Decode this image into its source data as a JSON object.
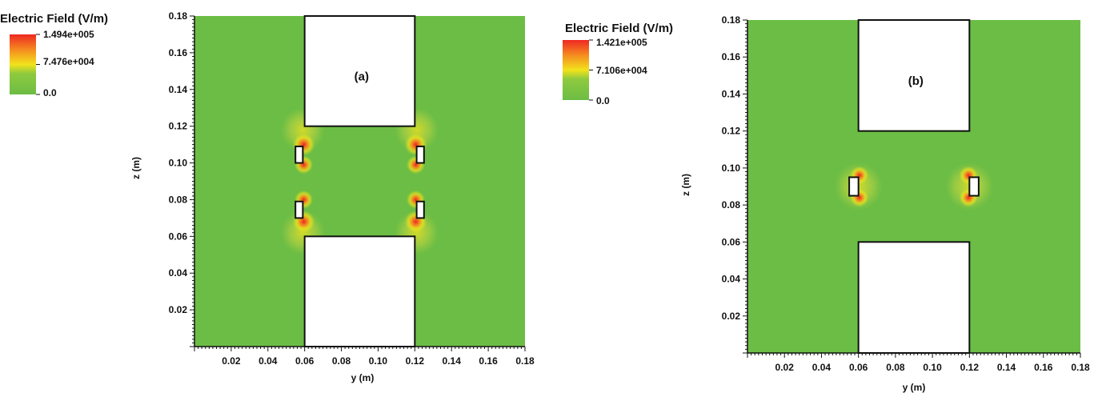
{
  "chart_data": [
    {
      "type": "heatmap",
      "panel_label": "(a)",
      "xlabel": "y (m)",
      "ylabel": "z (m)",
      "xlim": [
        0,
        0.18
      ],
      "ylim": [
        0,
        0.18
      ],
      "x_ticks": [
        "0.02",
        "0.04",
        "0.06",
        "0.08",
        "0.10",
        "0.12",
        "0.14",
        "0.16",
        "0.18"
      ],
      "y_ticks": [
        "0.02",
        "0.04",
        "0.06",
        "0.08",
        "0.10",
        "0.12",
        "0.14",
        "0.16",
        "0.18"
      ],
      "colorbar": {
        "title": "Electric Field (V/m)",
        "max_label": "1.494e+005",
        "mid_label": "7.476e+004",
        "min_label": "0.0",
        "max": 149400,
        "mid": 74760,
        "min": 0
      },
      "background_field": 0,
      "electrodes": [
        {
          "y0": 0.06,
          "y1": 0.12,
          "z0": 0.12,
          "z1": 0.18
        },
        {
          "y0": 0.06,
          "y1": 0.12,
          "z0": 0.0,
          "z1": 0.06
        }
      ],
      "small_rects": [
        {
          "y0": 0.055,
          "y1": 0.059,
          "z0": 0.1,
          "z1": 0.109
        },
        {
          "y0": 0.121,
          "y1": 0.125,
          "z0": 0.1,
          "z1": 0.109
        },
        {
          "y0": 0.055,
          "y1": 0.059,
          "z0": 0.07,
          "z1": 0.079
        },
        {
          "y0": 0.121,
          "y1": 0.125,
          "z0": 0.07,
          "z1": 0.079
        }
      ],
      "hotspots": [
        {
          "y": 0.059,
          "z": 0.118,
          "r": 0.012,
          "value": 30000
        },
        {
          "y": 0.121,
          "z": 0.118,
          "r": 0.012,
          "value": 30000
        },
        {
          "y": 0.059,
          "z": 0.062,
          "r": 0.012,
          "value": 30000
        },
        {
          "y": 0.121,
          "z": 0.062,
          "r": 0.012,
          "value": 30000
        },
        {
          "y": 0.0595,
          "z": 0.11,
          "r": 0.006,
          "value": 149400
        },
        {
          "y": 0.0595,
          "z": 0.099,
          "r": 0.005,
          "value": 120000
        },
        {
          "y": 0.1205,
          "z": 0.11,
          "r": 0.006,
          "value": 149400
        },
        {
          "y": 0.1205,
          "z": 0.099,
          "r": 0.005,
          "value": 120000
        },
        {
          "y": 0.0595,
          "z": 0.08,
          "r": 0.005,
          "value": 120000
        },
        {
          "y": 0.0595,
          "z": 0.068,
          "r": 0.006,
          "value": 149400
        },
        {
          "y": 0.1205,
          "z": 0.08,
          "r": 0.005,
          "value": 120000
        },
        {
          "y": 0.1205,
          "z": 0.068,
          "r": 0.006,
          "value": 149400
        }
      ]
    },
    {
      "type": "heatmap",
      "panel_label": "(b)",
      "xlabel": "y (m)",
      "ylabel": "z (m)",
      "xlim": [
        0,
        0.18
      ],
      "ylim": [
        0,
        0.18
      ],
      "x_ticks": [
        "0.02",
        "0.04",
        "0.06",
        "0.08",
        "0.10",
        "0.12",
        "0.14",
        "0.16",
        "0.18"
      ],
      "y_ticks": [
        "0.02",
        "0.04",
        "0.06",
        "0.08",
        "0.10",
        "0.12",
        "0.14",
        "0.16",
        "0.18"
      ],
      "colorbar": {
        "title": "Electric Field (V/m)",
        "max_label": "1.421e+005",
        "mid_label": "7.106e+004",
        "min_label": "0.0",
        "max": 142100,
        "mid": 71060,
        "min": 0
      },
      "background_field": 0,
      "electrodes": [
        {
          "y0": 0.06,
          "y1": 0.12,
          "z0": 0.12,
          "z1": 0.18
        },
        {
          "y0": 0.06,
          "y1": 0.12,
          "z0": 0.0,
          "z1": 0.06
        }
      ],
      "small_rects": [
        {
          "y0": 0.055,
          "y1": 0.06,
          "z0": 0.085,
          "z1": 0.095
        },
        {
          "y0": 0.12,
          "y1": 0.125,
          "z0": 0.085,
          "z1": 0.095
        }
      ],
      "hotspots": [
        {
          "y": 0.06,
          "z": 0.09,
          "r": 0.013,
          "value": 25000
        },
        {
          "y": 0.12,
          "z": 0.09,
          "r": 0.013,
          "value": 25000
        },
        {
          "y": 0.0605,
          "z": 0.096,
          "r": 0.005,
          "value": 142100
        },
        {
          "y": 0.0605,
          "z": 0.084,
          "r": 0.005,
          "value": 142100
        },
        {
          "y": 0.1195,
          "z": 0.096,
          "r": 0.005,
          "value": 142100
        },
        {
          "y": 0.1195,
          "z": 0.084,
          "r": 0.005,
          "value": 142100
        }
      ]
    }
  ],
  "colors": {
    "field_low": "#6cbd45",
    "field_mid": "#f2e31b",
    "field_high": "#ee2722",
    "electrode": "#ffffff",
    "outline": "#111111"
  }
}
